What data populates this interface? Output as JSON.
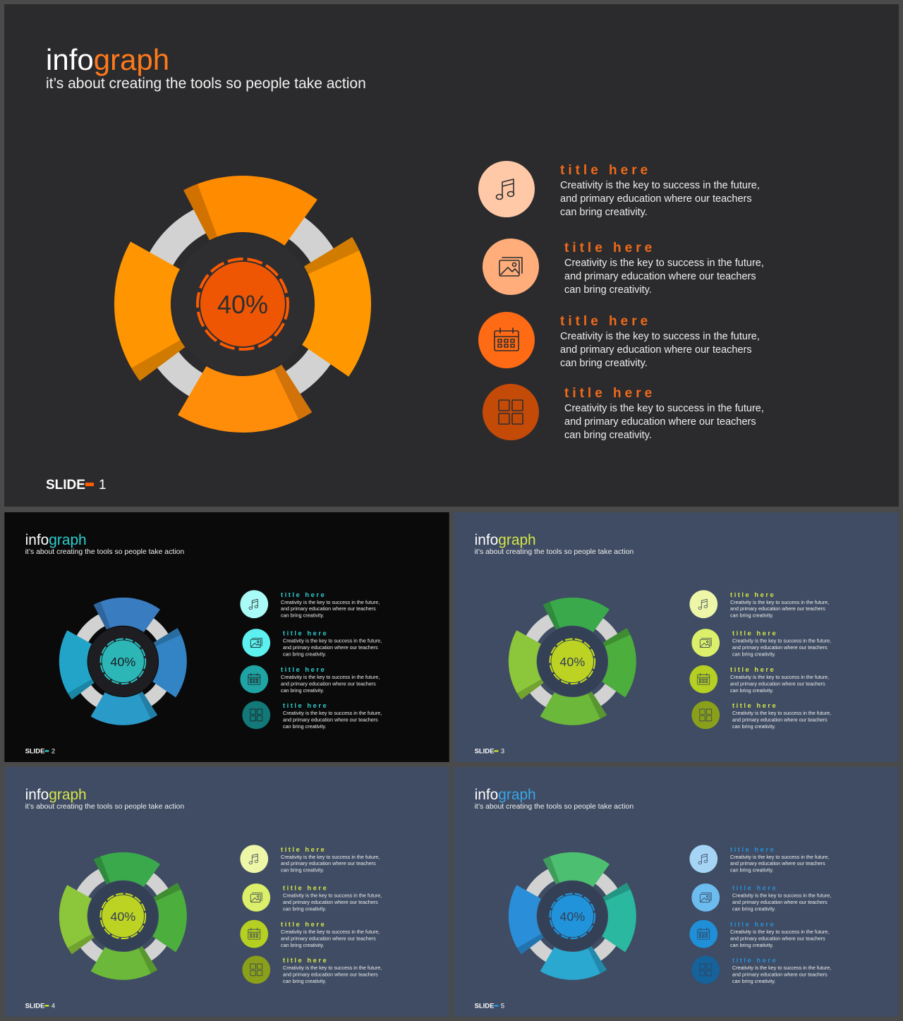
{
  "slides": [
    {
      "brand_a": "info",
      "brand_b": "graph",
      "subtitle": "it’s about creating the tools so people take action",
      "center": "40%",
      "footer_label": "SLIDE",
      "footer_num": "1",
      "colors": {
        "bg": "#2b2b2d",
        "seg": [
          "#ff8c00",
          "#ff9800",
          "#ff8d0a",
          "#ff9500"
        ],
        "ring": "#d2d2d2",
        "hub": "#2e2e31",
        "accent": "#ff5a00",
        "text": "#ff7a1a",
        "title": "#f06a1a",
        "icons": [
          "#ffc9a8",
          "#ffad7a",
          "#ff6a14",
          "#c44a08"
        ]
      },
      "items": [
        {
          "icon": "music-note-icon",
          "title": "title here",
          "l1": "Creativity  is the key to success in the future,",
          "l2": "and primary  education  where  our teachers",
          "l3": "can bring  creativity."
        },
        {
          "icon": "image-icon",
          "title": "title here",
          "l1": "Creativity  is the key to success in the future,",
          "l2": "and primary  education  where  our teachers",
          "l3": "can bring  creativity."
        },
        {
          "icon": "calendar-icon",
          "title": "title here",
          "l1": "Creativity  is the key to success in the future,",
          "l2": "and primary  education  where  our teachers",
          "l3": "can bring  creativity."
        },
        {
          "icon": "grid-icon",
          "title": "title here",
          "l1": "Creativity  is the key to success in the future,",
          "l2": "and primary  education  where  our teachers",
          "l3": "can bring  creativity."
        }
      ]
    },
    {
      "brand_a": "info",
      "brand_b": "graph",
      "subtitle": "it’s about creating the tools so people take action",
      "center": "40%",
      "footer_label": "SLIDE",
      "footer_num": "2",
      "colors": {
        "bg": "#0a0a0b",
        "seg": [
          "#3a7cc0",
          "#3284c4",
          "#2a9ac8",
          "#22a3c8"
        ],
        "ring": "#d2d2d2",
        "hub": "#1d1d22",
        "accent": "#2ec3c3",
        "text": "#2ecece",
        "title": "#2ecece",
        "icons": [
          "#a9fbf7",
          "#5cf0ee",
          "#1fa3a3",
          "#137878"
        ]
      },
      "items": [
        {
          "icon": "music-note-icon",
          "title": "title here",
          "l1": "Creativity  is the key to success in the future,",
          "l2": "and primary  education  where  our teachers",
          "l3": "can bring  creativity."
        },
        {
          "icon": "image-icon",
          "title": "title here",
          "l1": "Creativity  is the key to success in the future,",
          "l2": "and primary  education  where  our teachers",
          "l3": "can bring  creativity."
        },
        {
          "icon": "calendar-icon",
          "title": "title here",
          "l1": "Creativity  is the key to success in the future,",
          "l2": "and primary  education  where  our teachers",
          "l3": "can bring  creativity."
        },
        {
          "icon": "grid-icon",
          "title": "title here",
          "l1": "Creativity  is the key to success in the future,",
          "l2": "and primary  education  where  our teachers",
          "l3": "can bring  creativity."
        }
      ]
    },
    {
      "brand_a": "info",
      "brand_b": "graph",
      "subtitle": "it’s about creating the tools so people take action",
      "center": "40%",
      "footer_label": "SLIDE",
      "footer_num": "3",
      "colors": {
        "bg": "#3f4c63",
        "seg": [
          "#3aa94c",
          "#4cae3c",
          "#6cb83a",
          "#8cc63a"
        ],
        "ring": "#d2d2d2",
        "hub": "#334056",
        "accent": "#c8e01e",
        "text": "#d6e64a",
        "title": "#d6e64a",
        "icons": [
          "#eef7a8",
          "#dcef6a",
          "#b5cf22",
          "#8aa01a"
        ]
      },
      "items": [
        {
          "icon": "music-note-icon",
          "title": "title here",
          "l1": "Creativity  is the key to success in the future,",
          "l2": "and primary  education  where  our teachers",
          "l3": "can bring  creativity."
        },
        {
          "icon": "image-icon",
          "title": "title here",
          "l1": "Creativity  is the key to success in the future,",
          "l2": "and primary  education  where  our teachers",
          "l3": "can bring  creativity."
        },
        {
          "icon": "calendar-icon",
          "title": "title here",
          "l1": "Creativity  is the key to success in the future,",
          "l2": "and primary  education  where  our teachers",
          "l3": "can bring  creativity."
        },
        {
          "icon": "grid-icon",
          "title": "title here",
          "l1": "Creativity  is the key to success in the future,",
          "l2": "and primary  education  where  our teachers",
          "l3": "can bring  creativity."
        }
      ]
    },
    {
      "brand_a": "info",
      "brand_b": "graph",
      "subtitle": "it’s about creating the tools so people take action",
      "center": "40%",
      "footer_label": "SLIDE",
      "footer_num": "4",
      "colors": {
        "bg": "#3f4c63",
        "seg": [
          "#3aa94c",
          "#4cae3c",
          "#6cb83a",
          "#8cc63a"
        ],
        "ring": "#d2d2d2",
        "hub": "#334056",
        "accent": "#c8e01e",
        "text": "#d6e64a",
        "title": "#d6e64a",
        "icons": [
          "#eef7a8",
          "#dcef6a",
          "#b5cf22",
          "#8aa01a"
        ]
      },
      "items": [
        {
          "icon": "music-note-icon",
          "title": "title here",
          "l1": "Creativity  is the key to success in the future,",
          "l2": "and primary  education  where  our teachers",
          "l3": "can bring  creativity."
        },
        {
          "icon": "image-icon",
          "title": "title here",
          "l1": "Creativity  is the key to success in the future,",
          "l2": "and primary  education  where  our teachers",
          "l3": "can bring  creativity."
        },
        {
          "icon": "calendar-icon",
          "title": "title here",
          "l1": "Creativity  is the key to success in the future,",
          "l2": "and primary  education  where  our teachers",
          "l3": "can bring  creativity."
        },
        {
          "icon": "grid-icon",
          "title": "title here",
          "l1": "Creativity  is the key to success in the future,",
          "l2": "and primary  education  where  our teachers",
          "l3": "can bring  creativity."
        }
      ]
    },
    {
      "brand_a": "info",
      "brand_b": "graph",
      "subtitle": "it’s about creating the tools so people take action",
      "center": "40%",
      "footer_label": "SLIDE",
      "footer_num": "5",
      "colors": {
        "bg": "#3f4c63",
        "seg": [
          "#4cc070",
          "#2ab8a0",
          "#2aa8d0",
          "#2a8ed8"
        ],
        "ring": "#d2d2d2",
        "hub": "#334056",
        "accent": "#1e9ae6",
        "text": "#3aa6ea",
        "title": "#2c8fd6",
        "icons": [
          "#a6d4f5",
          "#6cbcf0",
          "#1f8fd8",
          "#16629a"
        ]
      },
      "items": [
        {
          "icon": "music-note-icon",
          "title": "title here",
          "l1": "Creativity  is the key to success in the future,",
          "l2": "and primary  education  where  our teachers",
          "l3": "can bring  creativity."
        },
        {
          "icon": "image-icon",
          "title": "title here",
          "l1": "Creativity  is the key to success in the future,",
          "l2": "and primary  education  where  our teachers",
          "l3": "can bring  creativity."
        },
        {
          "icon": "calendar-icon",
          "title": "title here",
          "l1": "Creativity  is the key to success in the future,",
          "l2": "and primary  education  where  our teachers",
          "l3": "can bring  creativity."
        },
        {
          "icon": "grid-icon",
          "title": "title here",
          "l1": "Creativity  is the key to success in the future,",
          "l2": "and primary  education  where  our teachers",
          "l3": "can bring  creativity."
        }
      ]
    }
  ]
}
